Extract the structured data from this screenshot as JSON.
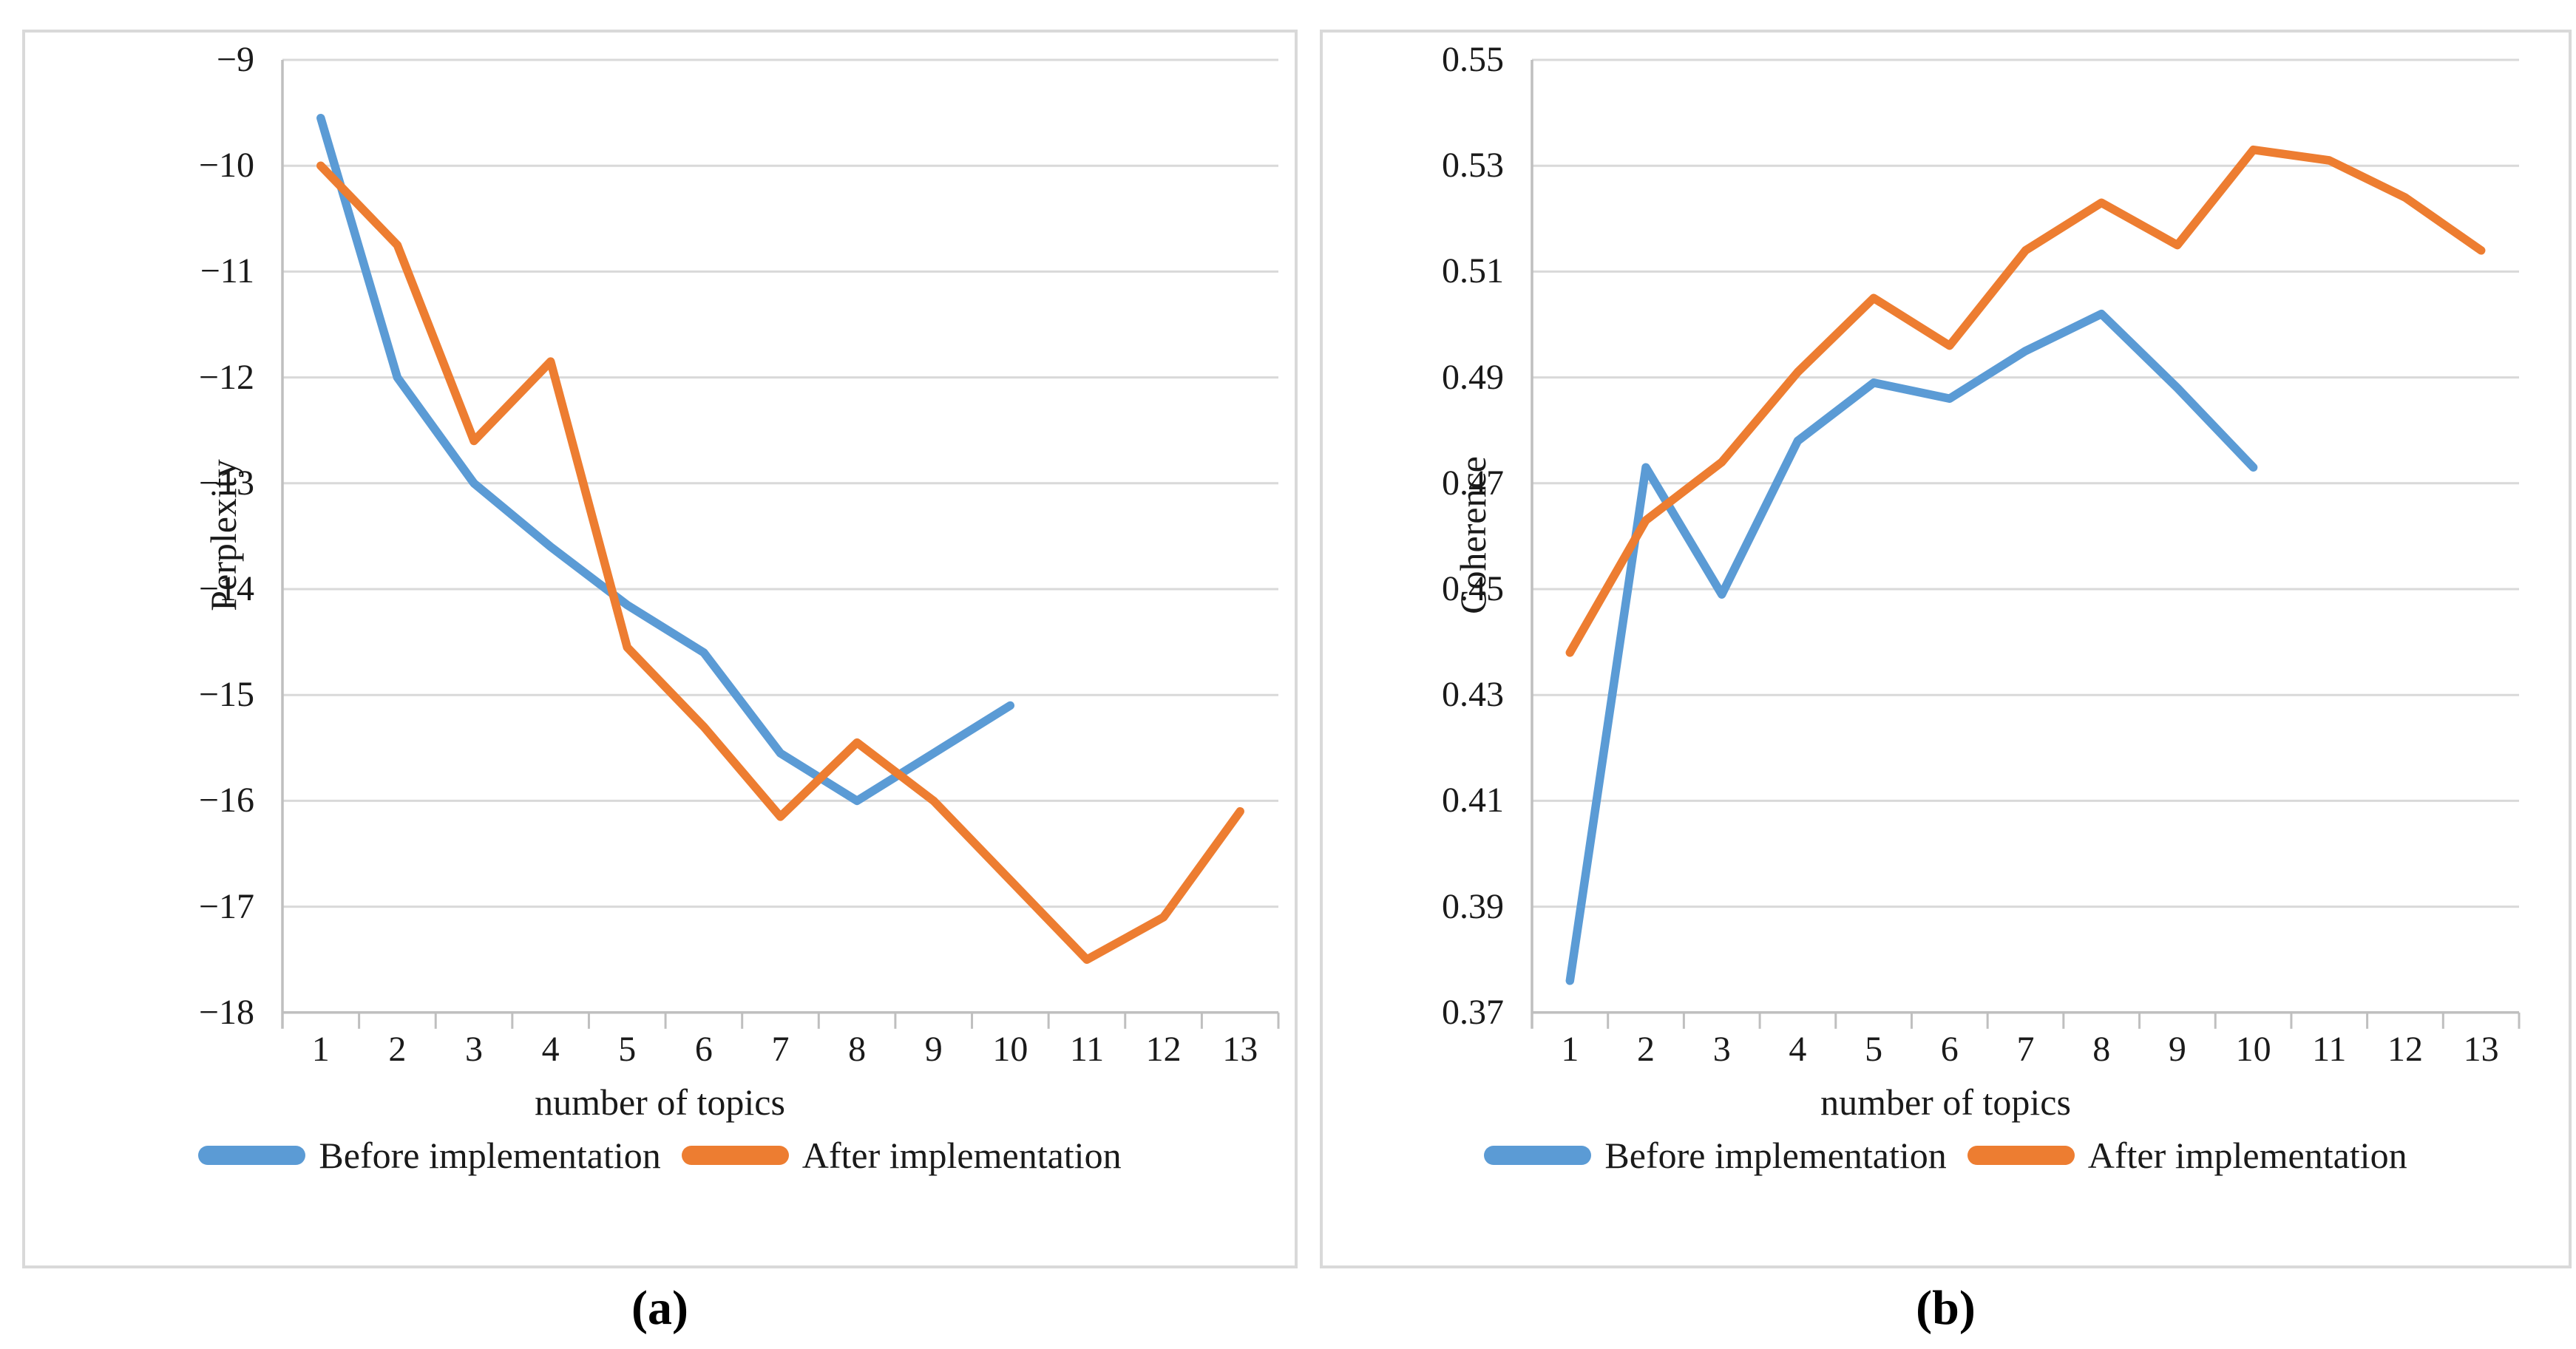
{
  "captions": [
    "(a)",
    "(b)"
  ],
  "colors": {
    "before_series": "#5B9BD5",
    "after_series": "#ED7D31",
    "gridline": "#D9D9D9",
    "axis_line": "#BFBFBF",
    "panel_border": "#D9D9D9"
  },
  "chart_data": [
    {
      "type": "line",
      "title": "",
      "ylabel": "Perplexity",
      "xlabel": "number of topics",
      "ylim": [
        -18,
        -9
      ],
      "ytick_labels": [
        "−9",
        "−10",
        "−11",
        "−12",
        "−13",
        "−14",
        "−15",
        "−16",
        "−17",
        "−18"
      ],
      "categories": [
        "1",
        "2",
        "3",
        "4",
        "5",
        "6",
        "7",
        "8",
        "9",
        "10",
        "11",
        "12",
        "13"
      ],
      "grid": true,
      "legend_position": "bottom",
      "series": [
        {
          "name": "Before implementation",
          "color": "#5B9BD5",
          "values": [
            -9.55,
            -12.0,
            -13.0,
            -13.6,
            -14.15,
            -14.6,
            -15.55,
            -16.0,
            -15.55,
            -15.1
          ]
        },
        {
          "name": "After implementation",
          "color": "#ED7D31",
          "values": [
            -10.0,
            -10.75,
            -12.6,
            -11.85,
            -14.55,
            -15.3,
            -16.15,
            -15.45,
            -16.0,
            -16.75,
            -17.5,
            -17.1,
            -16.1
          ]
        }
      ]
    },
    {
      "type": "line",
      "title": "",
      "ylabel": "Coherence",
      "xlabel": "number of topics",
      "ylim": [
        0.37,
        0.55
      ],
      "ytick_labels": [
        "0.55",
        "0.53",
        "0.51",
        "0.49",
        "0.47",
        "0.45",
        "0.43",
        "0.41",
        "0.39",
        "0.37"
      ],
      "categories": [
        "1",
        "2",
        "3",
        "4",
        "5",
        "6",
        "7",
        "8",
        "9",
        "10",
        "11",
        "12",
        "13"
      ],
      "grid": true,
      "legend_position": "bottom",
      "series": [
        {
          "name": "Before implementation",
          "color": "#5B9BD5",
          "values": [
            0.376,
            0.473,
            0.449,
            0.478,
            0.489,
            0.486,
            0.495,
            0.502,
            0.488,
            0.473
          ]
        },
        {
          "name": "After implementation",
          "color": "#ED7D31",
          "values": [
            0.438,
            0.463,
            0.474,
            0.491,
            0.505,
            0.496,
            0.514,
            0.523,
            0.515,
            0.533,
            0.531,
            0.524,
            0.514
          ]
        }
      ]
    }
  ]
}
